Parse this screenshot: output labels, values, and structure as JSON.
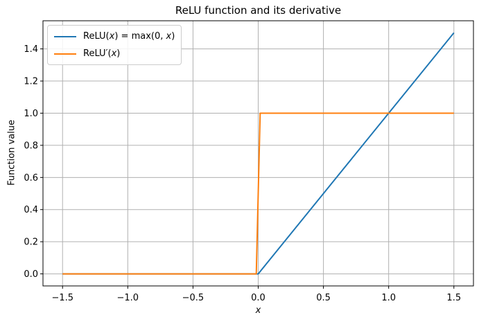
{
  "figure": {
    "background": "#ffffff"
  },
  "chart_data": {
    "type": "line",
    "title": "ReLU function and its derivative",
    "xlabel": "x",
    "ylabel": "Function value",
    "xlim": [
      -1.65,
      1.65
    ],
    "ylim": [
      -0.075,
      1.575
    ],
    "grid": true,
    "grid_color": "#b0b0b0",
    "legend_position": "upper left",
    "xticks": {
      "values": [
        -1.5,
        -1.0,
        -0.5,
        0.0,
        0.5,
        1.0,
        1.5
      ],
      "labels": [
        "−1.5",
        "−1.0",
        "−0.5",
        "0.0",
        "0.5",
        "1.0",
        "1.5"
      ]
    },
    "yticks": {
      "values": [
        0.0,
        0.2,
        0.4,
        0.6,
        0.8,
        1.0,
        1.2,
        1.4
      ],
      "labels": [
        "0.0",
        "0.2",
        "0.4",
        "0.6",
        "0.8",
        "1.0",
        "1.2",
        "1.4"
      ]
    },
    "series": [
      {
        "name": "ReLU(x) = max(0, x)",
        "label_segments": [
          {
            "t": "ReLU(",
            "i": false
          },
          {
            "t": "x",
            "i": true
          },
          {
            "t": ") = max(0, ",
            "i": false
          },
          {
            "t": "x",
            "i": true
          },
          {
            "t": ")",
            "i": false
          }
        ],
        "color": "#1f77b4",
        "points": [
          [
            -1.5,
            0
          ],
          [
            0,
            0
          ],
          [
            1.5,
            1.5
          ]
        ]
      },
      {
        "name": "ReLU′(x)",
        "label_segments": [
          {
            "t": "ReLU′(",
            "i": false
          },
          {
            "t": "x",
            "i": true
          },
          {
            "t": ")",
            "i": false
          }
        ],
        "color": "#ff7f0e",
        "points": [
          [
            -1.5,
            0
          ],
          [
            -0.015,
            0
          ],
          [
            0.015,
            1
          ],
          [
            1.5,
            1
          ]
        ]
      }
    ]
  }
}
